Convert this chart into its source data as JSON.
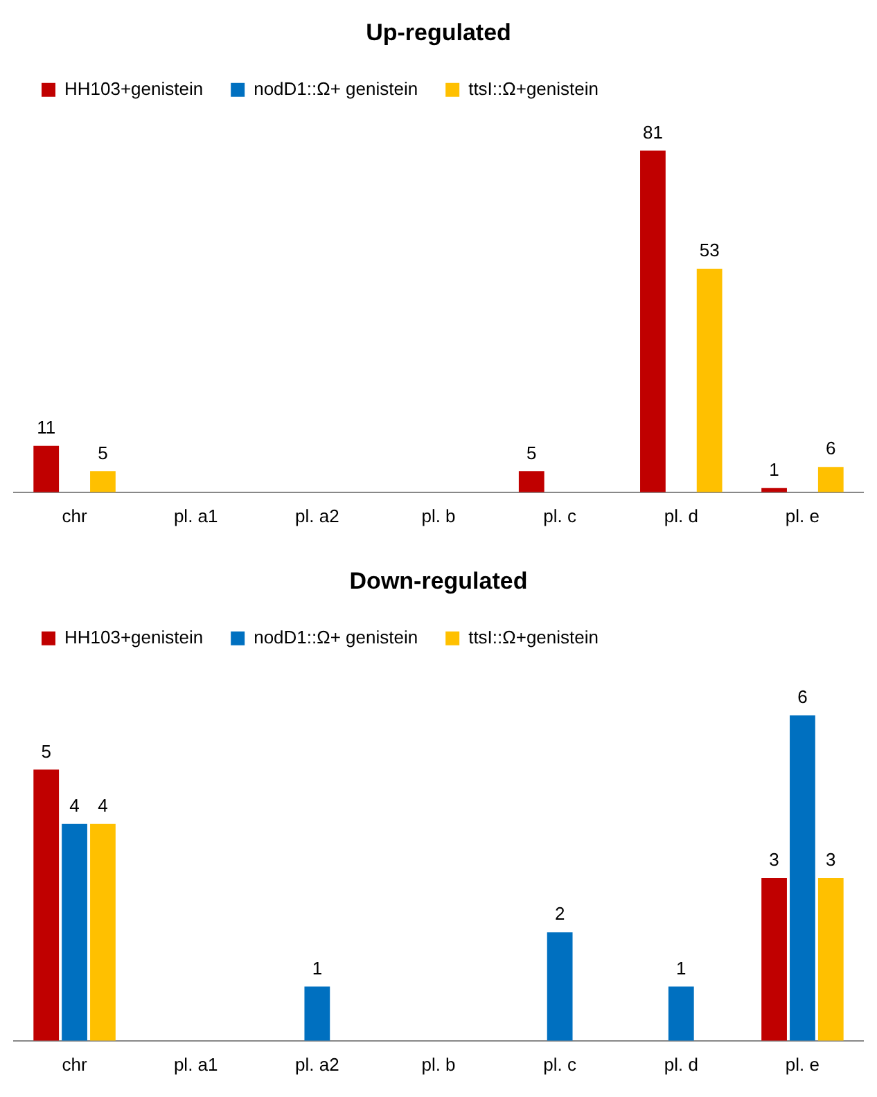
{
  "chart_data": [
    {
      "type": "bar",
      "title": "Up-regulated",
      "categories": [
        "chr",
        "pl. a1",
        "pl. a2",
        "pl. b",
        "pl. c",
        "pl. d",
        "pl. e"
      ],
      "legend": "top",
      "data_labels": true,
      "series": [
        {
          "name": "HH103+genistein",
          "color": "#c00000",
          "values": [
            11,
            null,
            null,
            null,
            5,
            81,
            1
          ]
        },
        {
          "name": "nodD1::Ω+ genistein",
          "color": "#0070c0",
          "values": [
            null,
            null,
            null,
            null,
            null,
            null,
            null
          ]
        },
        {
          "name": "ttsI::Ω+genistein",
          "color": "#ffc000",
          "values": [
            5,
            null,
            null,
            null,
            null,
            53,
            6
          ]
        }
      ]
    },
    {
      "type": "bar",
      "title": "Down-regulated",
      "categories": [
        "chr",
        "pl. a1",
        "pl. a2",
        "pl. b",
        "pl. c",
        "pl. d",
        "pl. e"
      ],
      "legend": "top",
      "data_labels": true,
      "series": [
        {
          "name": "HH103+genistein",
          "color": "#c00000",
          "values": [
            5,
            null,
            null,
            null,
            null,
            null,
            3
          ]
        },
        {
          "name": "nodD1::Ω+ genistein",
          "color": "#0070c0",
          "values": [
            4,
            null,
            1,
            null,
            2,
            1,
            6
          ]
        },
        {
          "name": "ttsI::Ω+genistein",
          "color": "#ffc000",
          "values": [
            4,
            null,
            null,
            null,
            null,
            null,
            3
          ]
        }
      ]
    }
  ]
}
